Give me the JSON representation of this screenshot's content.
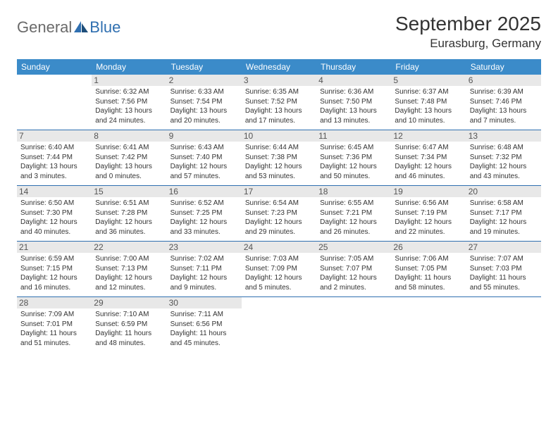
{
  "brand": {
    "part1": "General",
    "part2": "Blue"
  },
  "title": "September 2025",
  "location": "Eurasburg, Germany",
  "day_headers": [
    "Sunday",
    "Monday",
    "Tuesday",
    "Wednesday",
    "Thursday",
    "Friday",
    "Saturday"
  ],
  "colors": {
    "header_bg": "#3b8bc9",
    "header_text": "#ffffff",
    "border": "#2f6fb0",
    "daynum_bg": "#e8e8e8",
    "text": "#333333",
    "logo_gray": "#6a6a6a",
    "logo_blue": "#2f6fb0"
  },
  "weeks": [
    [
      {
        "n": "",
        "sr": "",
        "ss": "",
        "dl": ""
      },
      {
        "n": "1",
        "sr": "Sunrise: 6:32 AM",
        "ss": "Sunset: 7:56 PM",
        "dl": "Daylight: 13 hours and 24 minutes."
      },
      {
        "n": "2",
        "sr": "Sunrise: 6:33 AM",
        "ss": "Sunset: 7:54 PM",
        "dl": "Daylight: 13 hours and 20 minutes."
      },
      {
        "n": "3",
        "sr": "Sunrise: 6:35 AM",
        "ss": "Sunset: 7:52 PM",
        "dl": "Daylight: 13 hours and 17 minutes."
      },
      {
        "n": "4",
        "sr": "Sunrise: 6:36 AM",
        "ss": "Sunset: 7:50 PM",
        "dl": "Daylight: 13 hours and 13 minutes."
      },
      {
        "n": "5",
        "sr": "Sunrise: 6:37 AM",
        "ss": "Sunset: 7:48 PM",
        "dl": "Daylight: 13 hours and 10 minutes."
      },
      {
        "n": "6",
        "sr": "Sunrise: 6:39 AM",
        "ss": "Sunset: 7:46 PM",
        "dl": "Daylight: 13 hours and 7 minutes."
      }
    ],
    [
      {
        "n": "7",
        "sr": "Sunrise: 6:40 AM",
        "ss": "Sunset: 7:44 PM",
        "dl": "Daylight: 13 hours and 3 minutes."
      },
      {
        "n": "8",
        "sr": "Sunrise: 6:41 AM",
        "ss": "Sunset: 7:42 PM",
        "dl": "Daylight: 13 hours and 0 minutes."
      },
      {
        "n": "9",
        "sr": "Sunrise: 6:43 AM",
        "ss": "Sunset: 7:40 PM",
        "dl": "Daylight: 12 hours and 57 minutes."
      },
      {
        "n": "10",
        "sr": "Sunrise: 6:44 AM",
        "ss": "Sunset: 7:38 PM",
        "dl": "Daylight: 12 hours and 53 minutes."
      },
      {
        "n": "11",
        "sr": "Sunrise: 6:45 AM",
        "ss": "Sunset: 7:36 PM",
        "dl": "Daylight: 12 hours and 50 minutes."
      },
      {
        "n": "12",
        "sr": "Sunrise: 6:47 AM",
        "ss": "Sunset: 7:34 PM",
        "dl": "Daylight: 12 hours and 46 minutes."
      },
      {
        "n": "13",
        "sr": "Sunrise: 6:48 AM",
        "ss": "Sunset: 7:32 PM",
        "dl": "Daylight: 12 hours and 43 minutes."
      }
    ],
    [
      {
        "n": "14",
        "sr": "Sunrise: 6:50 AM",
        "ss": "Sunset: 7:30 PM",
        "dl": "Daylight: 12 hours and 40 minutes."
      },
      {
        "n": "15",
        "sr": "Sunrise: 6:51 AM",
        "ss": "Sunset: 7:28 PM",
        "dl": "Daylight: 12 hours and 36 minutes."
      },
      {
        "n": "16",
        "sr": "Sunrise: 6:52 AM",
        "ss": "Sunset: 7:25 PM",
        "dl": "Daylight: 12 hours and 33 minutes."
      },
      {
        "n": "17",
        "sr": "Sunrise: 6:54 AM",
        "ss": "Sunset: 7:23 PM",
        "dl": "Daylight: 12 hours and 29 minutes."
      },
      {
        "n": "18",
        "sr": "Sunrise: 6:55 AM",
        "ss": "Sunset: 7:21 PM",
        "dl": "Daylight: 12 hours and 26 minutes."
      },
      {
        "n": "19",
        "sr": "Sunrise: 6:56 AM",
        "ss": "Sunset: 7:19 PM",
        "dl": "Daylight: 12 hours and 22 minutes."
      },
      {
        "n": "20",
        "sr": "Sunrise: 6:58 AM",
        "ss": "Sunset: 7:17 PM",
        "dl": "Daylight: 12 hours and 19 minutes."
      }
    ],
    [
      {
        "n": "21",
        "sr": "Sunrise: 6:59 AM",
        "ss": "Sunset: 7:15 PM",
        "dl": "Daylight: 12 hours and 16 minutes."
      },
      {
        "n": "22",
        "sr": "Sunrise: 7:00 AM",
        "ss": "Sunset: 7:13 PM",
        "dl": "Daylight: 12 hours and 12 minutes."
      },
      {
        "n": "23",
        "sr": "Sunrise: 7:02 AM",
        "ss": "Sunset: 7:11 PM",
        "dl": "Daylight: 12 hours and 9 minutes."
      },
      {
        "n": "24",
        "sr": "Sunrise: 7:03 AM",
        "ss": "Sunset: 7:09 PM",
        "dl": "Daylight: 12 hours and 5 minutes."
      },
      {
        "n": "25",
        "sr": "Sunrise: 7:05 AM",
        "ss": "Sunset: 7:07 PM",
        "dl": "Daylight: 12 hours and 2 minutes."
      },
      {
        "n": "26",
        "sr": "Sunrise: 7:06 AM",
        "ss": "Sunset: 7:05 PM",
        "dl": "Daylight: 11 hours and 58 minutes."
      },
      {
        "n": "27",
        "sr": "Sunrise: 7:07 AM",
        "ss": "Sunset: 7:03 PM",
        "dl": "Daylight: 11 hours and 55 minutes."
      }
    ],
    [
      {
        "n": "28",
        "sr": "Sunrise: 7:09 AM",
        "ss": "Sunset: 7:01 PM",
        "dl": "Daylight: 11 hours and 51 minutes."
      },
      {
        "n": "29",
        "sr": "Sunrise: 7:10 AM",
        "ss": "Sunset: 6:59 PM",
        "dl": "Daylight: 11 hours and 48 minutes."
      },
      {
        "n": "30",
        "sr": "Sunrise: 7:11 AM",
        "ss": "Sunset: 6:56 PM",
        "dl": "Daylight: 11 hours and 45 minutes."
      },
      {
        "n": "",
        "sr": "",
        "ss": "",
        "dl": ""
      },
      {
        "n": "",
        "sr": "",
        "ss": "",
        "dl": ""
      },
      {
        "n": "",
        "sr": "",
        "ss": "",
        "dl": ""
      },
      {
        "n": "",
        "sr": "",
        "ss": "",
        "dl": ""
      }
    ]
  ]
}
